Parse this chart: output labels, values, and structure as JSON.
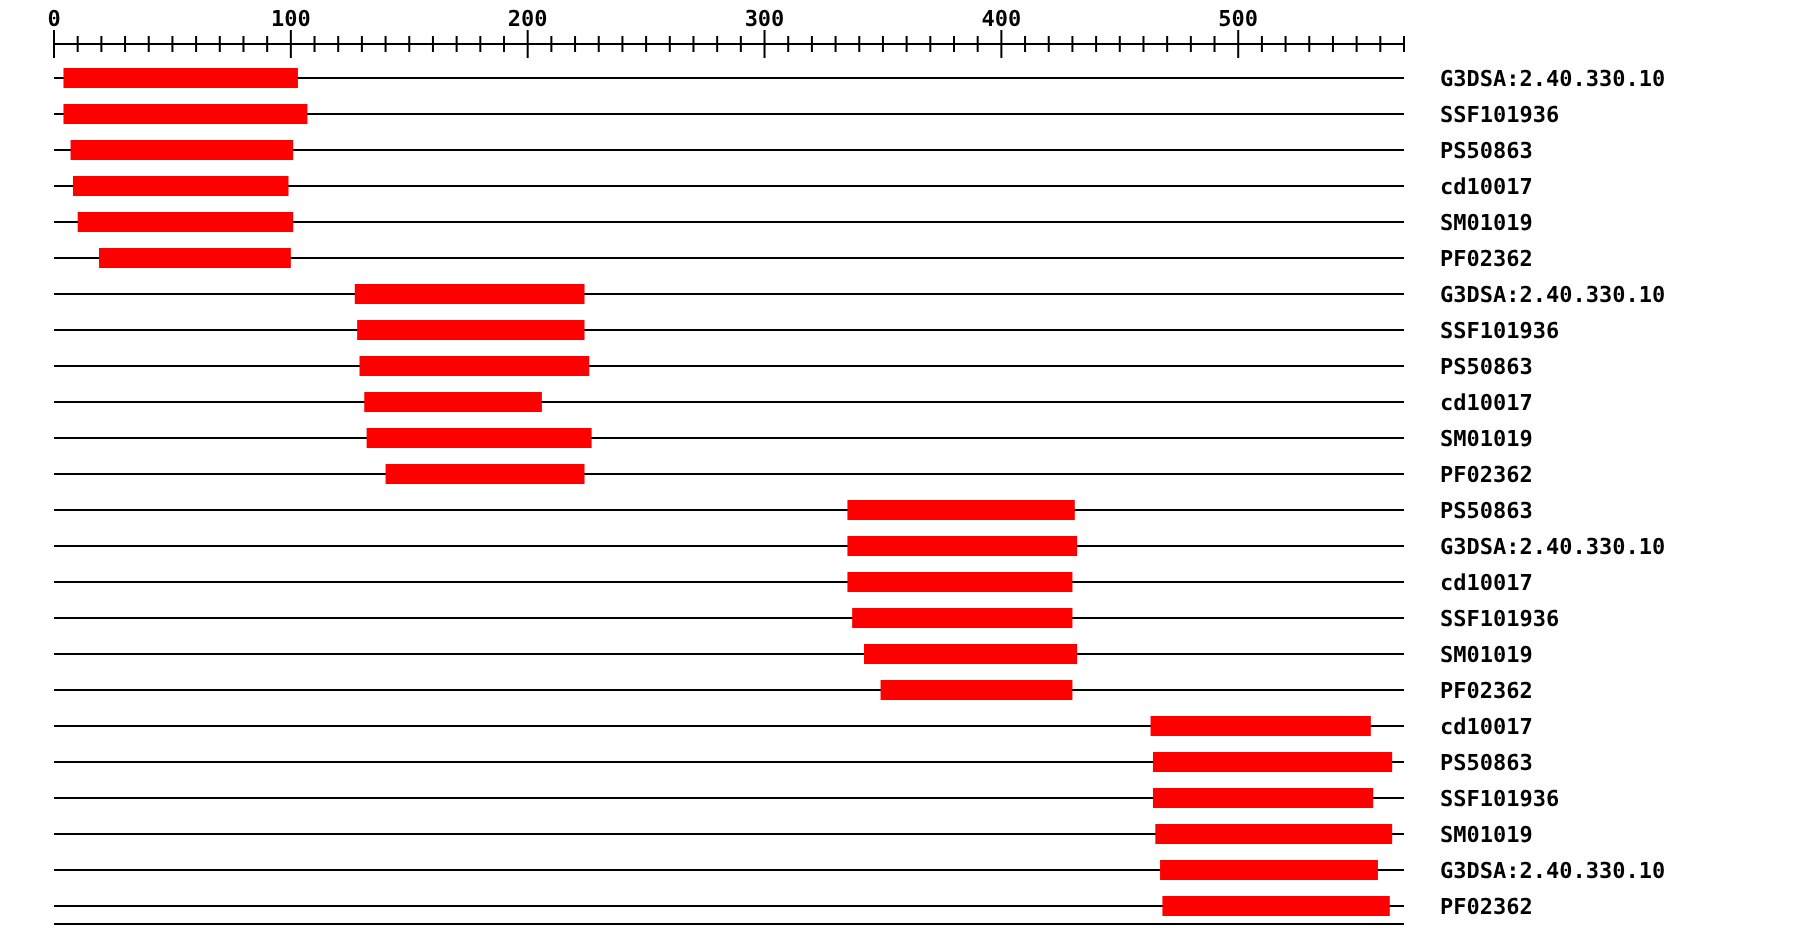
{
  "chart_data": {
    "type": "bar",
    "orientation": "horizontal",
    "color": "#ff0000",
    "grid": "y",
    "categories": [
      "G3DSA:2.40.330.10",
      "SSF101936",
      "PS50863",
      "cd10017",
      "SM01019",
      "PF02362",
      "G3DSA:2.40.330.10",
      "SSF101936",
      "PS50863",
      "cd10017",
      "SM01019",
      "PF02362",
      "PS50863",
      "G3DSA:2.40.330.10",
      "cd10017",
      "SSF101936",
      "SM01019",
      "PF02362",
      "cd10017",
      "PS50863",
      "SSF101936",
      "SM01019",
      "G3DSA:2.40.330.10",
      "PF02362"
    ],
    "base": [
      4,
      4,
      7,
      8,
      10,
      19,
      127,
      128,
      129,
      131,
      132,
      140,
      335,
      335,
      335,
      337,
      342,
      349,
      463,
      464,
      464,
      465,
      467,
      468
    ],
    "values": [
      99,
      103,
      94,
      91,
      91,
      81,
      97,
      96,
      97,
      75,
      95,
      84,
      96,
      97,
      95,
      93,
      90,
      81,
      93,
      101,
      93,
      100,
      92,
      96
    ],
    "xlim": [
      0,
      570
    ],
    "xticks": [
      0,
      {
        "value": 10,
        "label": null
      },
      {
        "value": 20,
        "label": null
      },
      {
        "value": 30,
        "label": null
      },
      {
        "value": 40,
        "label": null
      },
      {
        "value": 50,
        "label": null
      },
      {
        "value": 60,
        "label": null
      },
      {
        "value": 70,
        "label": null
      },
      {
        "value": 80,
        "label": null
      },
      {
        "value": 90,
        "label": null
      },
      100,
      {
        "value": 110,
        "label": null
      },
      {
        "value": 120,
        "label": null
      },
      {
        "value": 130,
        "label": null
      },
      {
        "value": 140,
        "label": null
      },
      {
        "value": 150,
        "label": null
      },
      {
        "value": 160,
        "label": null
      },
      {
        "value": 170,
        "label": null
      },
      {
        "value": 180,
        "label": null
      },
      {
        "value": 190,
        "label": null
      },
      200,
      {
        "value": 210,
        "label": null
      },
      {
        "value": 220,
        "label": null
      },
      {
        "value": 230,
        "label": null
      },
      {
        "value": 240,
        "label": null
      },
      {
        "value": 250,
        "label": null
      },
      {
        "value": 260,
        "label": null
      },
      {
        "value": 270,
        "label": null
      },
      {
        "value": 280,
        "label": null
      },
      {
        "value": 290,
        "label": null
      },
      300,
      {
        "value": 310,
        "label": null
      },
      {
        "value": 320,
        "label": null
      },
      {
        "value": 330,
        "label": null
      },
      {
        "value": 340,
        "label": null
      },
      {
        "value": 350,
        "label": null
      },
      {
        "value": 360,
        "label": null
      },
      {
        "value": 370,
        "label": null
      },
      {
        "value": 380,
        "label": null
      },
      {
        "value": 390,
        "label": null
      },
      400,
      {
        "value": 410,
        "label": null
      },
      {
        "value": 420,
        "label": null
      },
      {
        "value": 430,
        "label": null
      },
      {
        "value": 440,
        "label": null
      },
      {
        "value": 450,
        "label": null
      },
      {
        "value": 460,
        "label": null
      },
      {
        "value": 470,
        "label": null
      },
      {
        "value": 480,
        "label": null
      },
      {
        "value": 490,
        "label": null
      },
      500,
      {
        "value": 510,
        "label": null
      },
      {
        "value": 520,
        "label": null
      },
      {
        "value": 530,
        "label": null
      },
      {
        "value": 540,
        "label": null
      },
      {
        "value": 550,
        "label": null
      },
      {
        "value": 560,
        "label": null
      },
      {
        "value": 570,
        "label": null
      }
    ]
  }
}
